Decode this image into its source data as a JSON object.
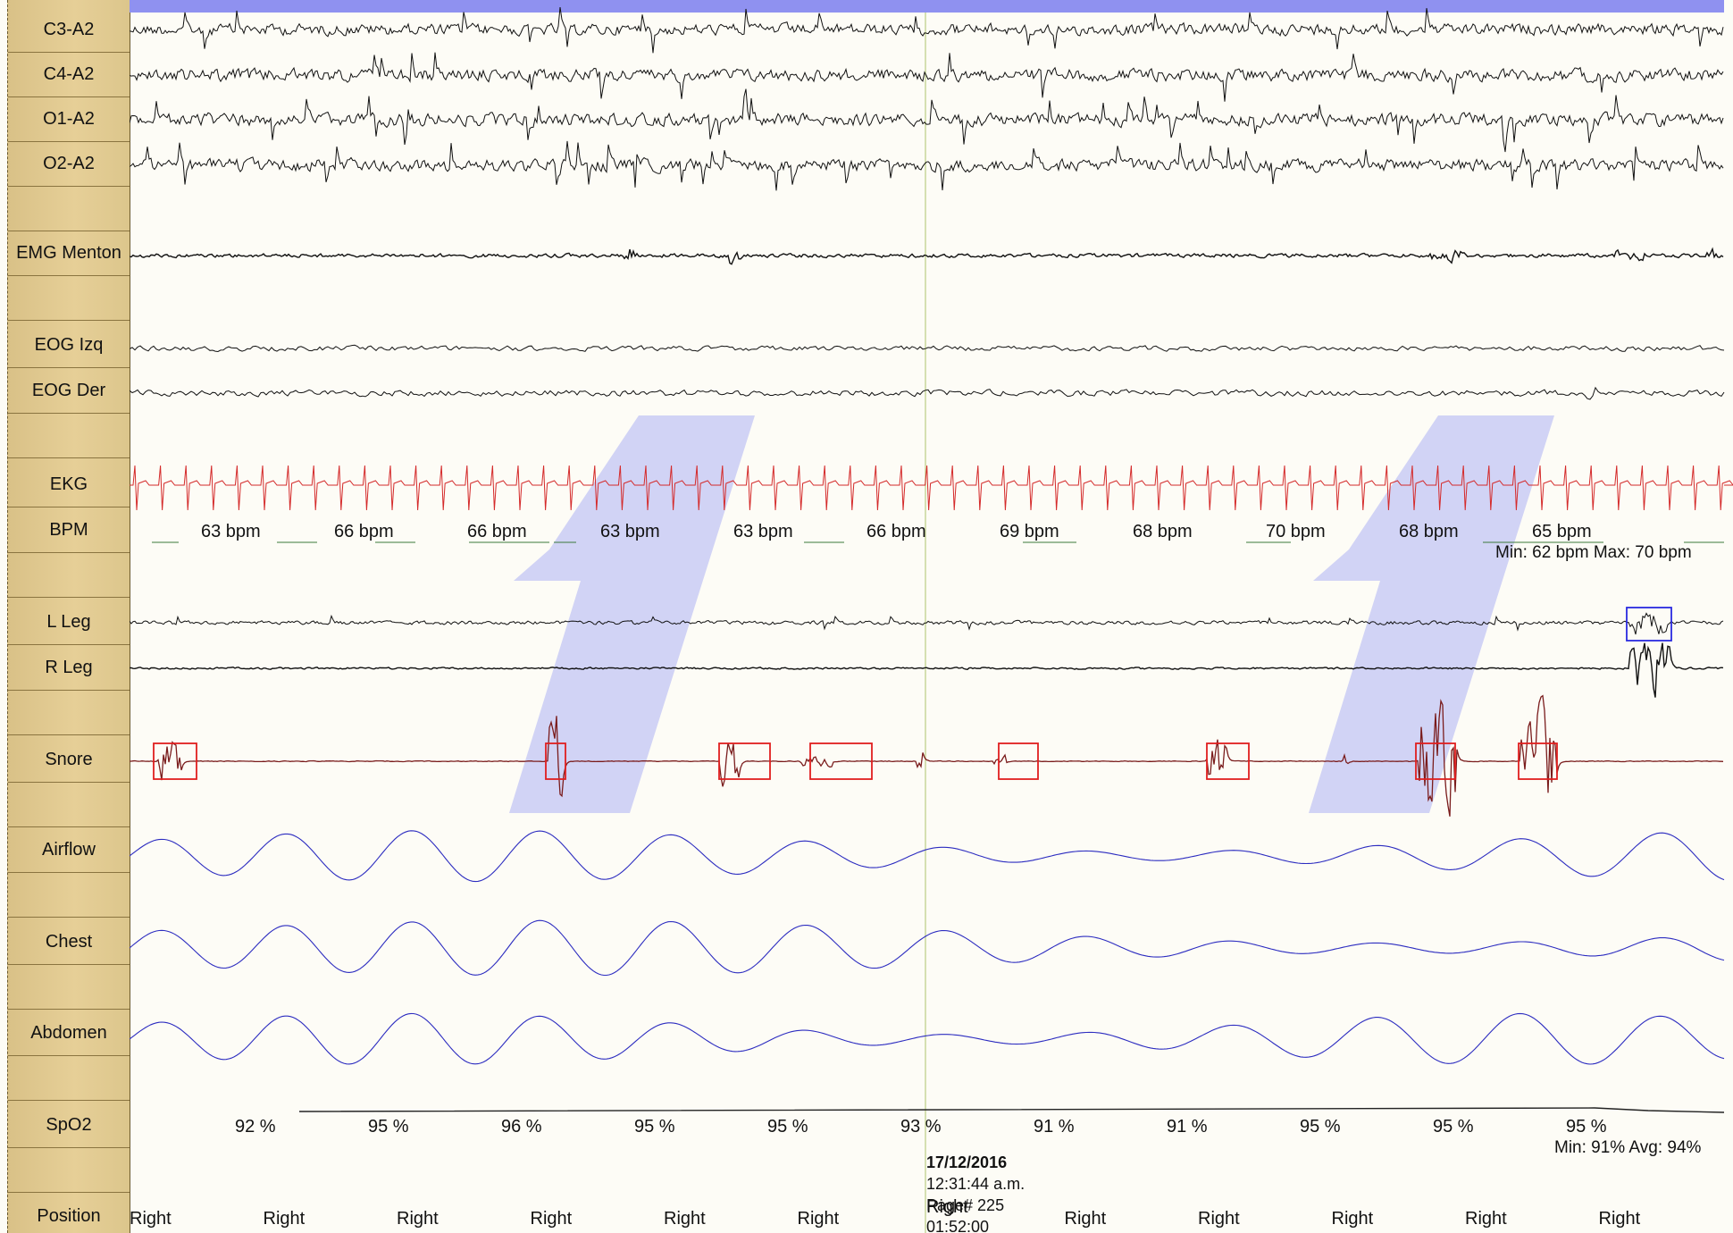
{
  "channels": [
    {
      "label": "C3-A2"
    },
    {
      "label": "C4-A2"
    },
    {
      "label": "O1-A2"
    },
    {
      "label": "O2-A2"
    },
    {
      "label": "EMG Menton"
    },
    {
      "label": "EOG Izq"
    },
    {
      "label": "EOG Der"
    },
    {
      "label": "EKG"
    },
    {
      "label": "BPM"
    },
    {
      "label": "L Leg"
    },
    {
      "label": "R Leg"
    },
    {
      "label": "Snore"
    },
    {
      "label": "Airflow"
    },
    {
      "label": "Chest"
    },
    {
      "label": "Abdomen"
    },
    {
      "label": "SpO2"
    },
    {
      "label": "Position"
    }
  ],
  "bpm_values": [
    "63 bpm",
    "66 bpm",
    "66 bpm",
    "63 bpm",
    "63 bpm",
    "66 bpm",
    "69 bpm",
    "68 bpm",
    "70 bpm",
    "68 bpm",
    "65 bpm"
  ],
  "bpm_summary": "Min:  62 bpm  Max:  70 bpm",
  "spo2_values": [
    "92 %",
    "95 %",
    "96 %",
    "95 %",
    "95 %",
    "93 %",
    "91 %",
    "91 %",
    "95 %",
    "95 %",
    "95 %"
  ],
  "spo2_summary": "Min:  91%  Avg:  94%",
  "position_values": [
    "Right",
    "Right",
    "Right",
    "Right",
    "Right",
    "Right",
    "Right",
    "Right",
    "Right",
    "Right",
    "Right",
    "Right",
    "Right"
  ],
  "stamp": {
    "date": "17/12/2016",
    "time": "12:31:44 a.m.",
    "page": "Page# 225",
    "elapsed": "01:52:00"
  },
  "watermark": "1 1",
  "colors": {
    "eeg": "#111111",
    "ekg": "#d42a2a",
    "snore": "#7a1c1c",
    "event_box_red": "#e01f1f",
    "event_box_blue": "#2a2ae0",
    "resp": "#2c2cc0",
    "watermark": "#c9cbf4",
    "label_bg": "#e2cb92",
    "cursor": "#c8d69a"
  }
}
